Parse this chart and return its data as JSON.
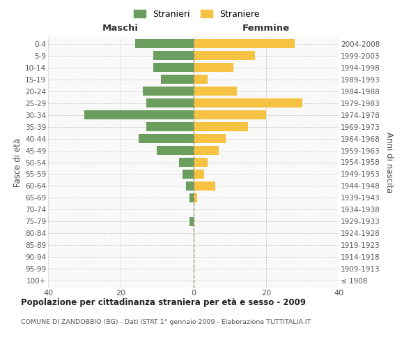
{
  "age_groups": [
    "100+",
    "95-99",
    "90-94",
    "85-89",
    "80-84",
    "75-79",
    "70-74",
    "65-69",
    "60-64",
    "55-59",
    "50-54",
    "45-49",
    "40-44",
    "35-39",
    "30-34",
    "25-29",
    "20-24",
    "15-19",
    "10-14",
    "5-9",
    "0-4"
  ],
  "birth_years": [
    "≤ 1908",
    "1909-1913",
    "1914-1918",
    "1919-1923",
    "1924-1928",
    "1929-1933",
    "1934-1938",
    "1939-1943",
    "1944-1948",
    "1949-1953",
    "1954-1958",
    "1959-1963",
    "1964-1968",
    "1969-1973",
    "1974-1978",
    "1979-1983",
    "1984-1988",
    "1989-1993",
    "1994-1998",
    "1999-2003",
    "2004-2008"
  ],
  "males": [
    0,
    0,
    0,
    0,
    0,
    1,
    0,
    1,
    2,
    3,
    4,
    10,
    15,
    13,
    30,
    13,
    14,
    9,
    11,
    11,
    16
  ],
  "females": [
    0,
    0,
    0,
    0,
    0,
    0,
    0,
    1,
    6,
    3,
    4,
    7,
    9,
    15,
    20,
    30,
    12,
    4,
    11,
    17,
    28
  ],
  "male_color": "#6b9e5e",
  "female_color": "#f5c242",
  "background_color": "#f9f9f9",
  "grid_color": "#cccccc",
  "title": "Popolazione per cittadinanza straniera per età e sesso - 2009",
  "subtitle": "COMUNE DI ZANDOBBIO (BG) - Dati ISTAT 1° gennaio 2009 - Elaborazione TUTTITALIA.IT",
  "header_left": "Maschi",
  "header_right": "Femmine",
  "ylabel_left": "Fasce di età",
  "ylabel_right": "Anni di nascita",
  "legend_male": "Stranieri",
  "legend_female": "Straniere",
  "xlim": 40,
  "bar_height": 0.75,
  "xtick_labels": [
    "40",
    "20",
    "0",
    "20",
    "40"
  ],
  "xtick_vals": [
    -40,
    -20,
    0,
    20,
    40
  ]
}
